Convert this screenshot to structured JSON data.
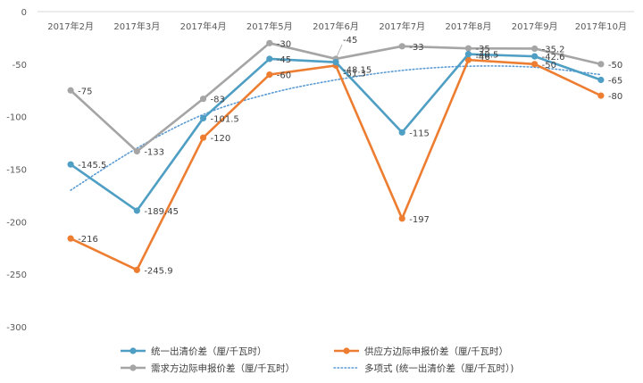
{
  "chart_data": {
    "type": "line",
    "title": "",
    "xlabel": "",
    "ylabel": "",
    "categories": [
      "2017年2月",
      "2017年3月",
      "2017年4月",
      "2017年5月",
      "2017年6月",
      "2017年7月",
      "2017年8月",
      "2017年9月",
      "2017年10月"
    ],
    "ylim": [
      -300,
      0
    ],
    "yticks": [
      0,
      -50,
      -100,
      -150,
      -200,
      -250,
      -300
    ],
    "x_axis_position": "top",
    "grid": false,
    "legend_position": "bottom",
    "series": [
      {
        "key": "clearing",
        "name": "统一出清价差（厘/千瓦时）",
        "color": "#4f9ec4",
        "style": "solid",
        "values": [
          -145.5,
          -189.45,
          -101.5,
          -45,
          -48.15,
          -115,
          -40.5,
          -42.6,
          -65
        ],
        "labels": [
          "-145.5",
          "-189.45",
          "-101.5",
          "-45",
          "-48.15",
          "-115",
          "-40.5",
          "-42.6",
          "-65"
        ]
      },
      {
        "key": "supply",
        "name": "供应方边际申报价差（厘/千瓦时）",
        "color": "#ed7d31",
        "style": "solid",
        "values": [
          -216,
          -245.9,
          -120,
          -60,
          -51.3,
          -197,
          -46,
          -50,
          -80
        ],
        "labels": [
          "-216",
          "-245.9",
          "-120",
          "-60",
          "-51.3",
          "-197",
          "-46",
          "-50",
          "-80"
        ]
      },
      {
        "key": "demand",
        "name": "需求方边际申报价差（厘/千瓦时）",
        "color": "#a5a5a5",
        "style": "solid",
        "values": [
          -75,
          -133,
          -83,
          -30,
          -45,
          -33,
          -35,
          -35.2,
          -50
        ],
        "labels": [
          "-75",
          "-133",
          "-83",
          "-30",
          "-45",
          "-33",
          "-35",
          "-35.2",
          "-50"
        ]
      },
      {
        "key": "trend",
        "name": "多项式 (统一出清价差（厘/千瓦时）)",
        "color": "#5b9bd5",
        "style": "dotted",
        "values": [
          -170,
          -130,
          -98,
          -78,
          -65,
          -56,
          -52,
          -53,
          -60
        ],
        "labels": []
      }
    ]
  }
}
